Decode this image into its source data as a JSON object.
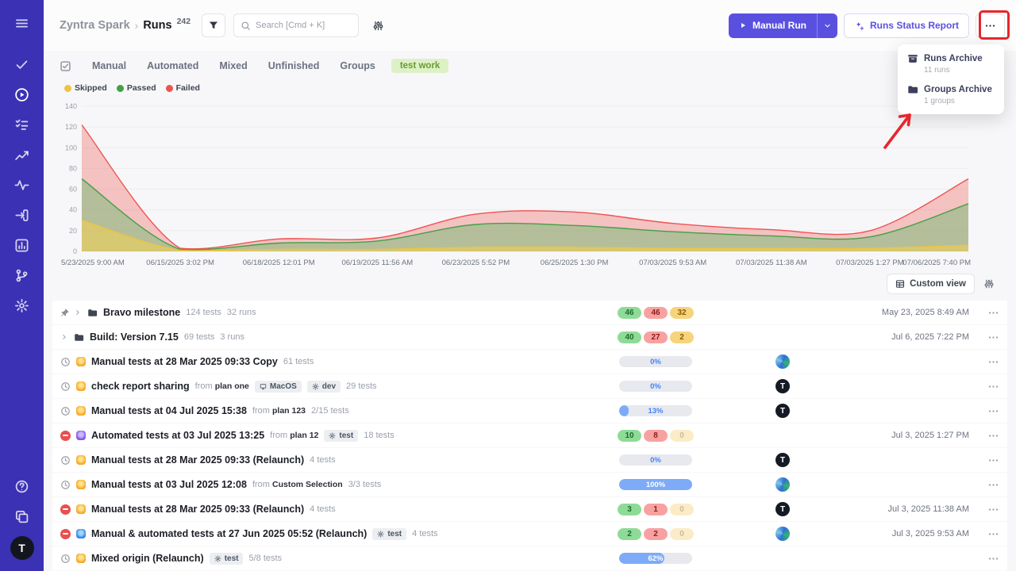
{
  "colors": {
    "accent": "#5a50df",
    "sidebar": "#3b31b4",
    "annotation": "#e8252c"
  },
  "sidebar": {
    "top_icons": [
      "menu",
      "check",
      "play-circle",
      "list-check",
      "trend",
      "pulse",
      "sign-in",
      "chart",
      "branch",
      "gear"
    ],
    "bottom_icons": [
      "help",
      "copy"
    ],
    "logo_letter": "T"
  },
  "header": {
    "breadcrumb": {
      "project": "Zyntra Spark",
      "separator": "›",
      "page": "Runs",
      "count": "242"
    },
    "search_placeholder": "Search [Cmd + K]",
    "manual_run_label": "Manual Run",
    "runs_status_report_label": "Runs Status Report"
  },
  "tabs": {
    "items": [
      "Manual",
      "Automated",
      "Mixed",
      "Unfinished",
      "Groups"
    ],
    "tag": "test work"
  },
  "chart_data": {
    "type": "area",
    "title": "",
    "xlabel": "",
    "ylabel": "",
    "grid": true,
    "legend_position": "top-left",
    "x": [
      "5/23/2025 9:00 AM",
      "06/15/2025 3:02 PM",
      "06/18/2025 12:01 PM",
      "06/19/2025 11:56 AM",
      "06/23/2025 5:52 PM",
      "06/25/2025 1:30 PM",
      "07/03/2025 9:53 AM",
      "07/03/2025 11:38 AM",
      "07/03/2025 1:27 PM",
      "07/06/2025 7:40 PM"
    ],
    "ylim": [
      0,
      140
    ],
    "yticks": [
      0,
      20,
      40,
      60,
      80,
      100,
      120,
      140
    ],
    "series": [
      {
        "name": "Skipped",
        "color": "#eec43e",
        "fill": "rgba(244,208,82,0.55)",
        "values": [
          30,
          1,
          2,
          2,
          4,
          4,
          3,
          3,
          3,
          6
        ]
      },
      {
        "name": "Passed",
        "color": "#43a047",
        "fill": "rgba(102,187,106,0.45)",
        "values": [
          70,
          2,
          8,
          10,
          26,
          25,
          19,
          15,
          14,
          46
        ]
      },
      {
        "name": "Failed",
        "color": "#ef5350",
        "fill": "rgba(239,115,110,0.40)",
        "values": [
          122,
          3,
          12,
          13,
          36,
          38,
          27,
          21,
          20,
          70
        ]
      }
    ]
  },
  "toolbar": {
    "custom_view_label": "Custom view"
  },
  "context_menu": {
    "items": [
      {
        "icon": "archive",
        "label": "Runs Archive",
        "sublabel": "11 runs"
      },
      {
        "icon": "folder",
        "label": "Groups Archive",
        "sublabel": "1 groups"
      }
    ]
  },
  "table": {
    "rows": [
      {
        "kind": "group",
        "pinned": true,
        "title": "Bravo milestone",
        "meta": [
          "124 tests",
          "32 runs"
        ],
        "result": {
          "type": "badges",
          "passed": 46,
          "failed": 46,
          "skipped": 32
        },
        "date": "May 23, 2025 8:49 AM"
      },
      {
        "kind": "group",
        "title": "Build: Version 7.15",
        "meta": [
          "69 tests",
          "3 runs"
        ],
        "result": {
          "type": "badges",
          "passed": 40,
          "failed": 27,
          "skipped": 2
        },
        "date": "Jul 6, 2025 7:22 PM"
      },
      {
        "kind": "run",
        "status": "scheduled",
        "origin": "manual",
        "title": "Manual tests at 28 Mar 2025 09:33 Copy",
        "tests": "61 tests",
        "result": {
          "type": "progress",
          "pct": 0,
          "label": "0%"
        },
        "avatar": "globe"
      },
      {
        "kind": "run",
        "status": "scheduled",
        "origin": "manual",
        "title": "check report sharing",
        "from": "plan one",
        "badges": [
          {
            "icon": "monitor",
            "label": "MacOS"
          },
          {
            "icon": "gear",
            "label": "dev"
          }
        ],
        "tests": "29 tests",
        "result": {
          "type": "progress",
          "pct": 0,
          "label": "0%"
        },
        "avatar": "T"
      },
      {
        "kind": "run",
        "status": "scheduled",
        "origin": "manual",
        "title": "Manual tests at 04 Jul 2025 15:38",
        "from": "plan 123",
        "tests": "2/15 tests",
        "result": {
          "type": "progress",
          "pct": 13,
          "label": "13%"
        },
        "avatar": "T"
      },
      {
        "kind": "run",
        "status": "stopped",
        "origin": "automated",
        "title": "Automated tests at 03 Jul 2025 13:25",
        "from": "plan 12",
        "badges": [
          {
            "icon": "gear",
            "label": "test"
          }
        ],
        "tests": "18 tests",
        "result": {
          "type": "badges",
          "passed": 10,
          "failed": 8,
          "skipped": 0
        },
        "date": "Jul 3, 2025 1:27 PM"
      },
      {
        "kind": "run",
        "status": "scheduled",
        "origin": "manual",
        "title": "Manual tests at 28 Mar 2025 09:33 (Relaunch)",
        "tests": "4 tests",
        "result": {
          "type": "progress",
          "pct": 0,
          "label": "0%"
        },
        "avatar": "T"
      },
      {
        "kind": "run",
        "status": "scheduled",
        "origin": "manual",
        "title": "Manual tests at 03 Jul 2025 12:08",
        "from": "Custom Selection",
        "tests": "3/3 tests",
        "result": {
          "type": "progress",
          "pct": 100,
          "label": "100%"
        },
        "avatar": "globe"
      },
      {
        "kind": "run",
        "status": "stopped",
        "origin": "manual",
        "title": "Manual tests at 28 Mar 2025 09:33 (Relaunch)",
        "tests": "4 tests",
        "result": {
          "type": "badges",
          "passed": 3,
          "failed": 1,
          "skipped": 0
        },
        "avatar": "T",
        "date": "Jul 3, 2025 11:38 AM"
      },
      {
        "kind": "run",
        "status": "stopped",
        "origin": "mixed",
        "title": "Manual & automated tests at 27 Jun 2025 05:52 (Relaunch)",
        "badges": [
          {
            "icon": "gear",
            "label": "test"
          }
        ],
        "tests": "4 tests",
        "result": {
          "type": "badges",
          "passed": 2,
          "failed": 2,
          "skipped": 0
        },
        "avatar": "globe",
        "date": "Jul 3, 2025 9:53 AM"
      },
      {
        "kind": "run",
        "status": "scheduled",
        "origin": "manual",
        "title": "Mixed origin (Relaunch)",
        "badges": [
          {
            "icon": "gear",
            "label": "test"
          }
        ],
        "tests": "5/8 tests",
        "result": {
          "type": "progress",
          "pct": 62,
          "label": "62%"
        }
      }
    ]
  }
}
